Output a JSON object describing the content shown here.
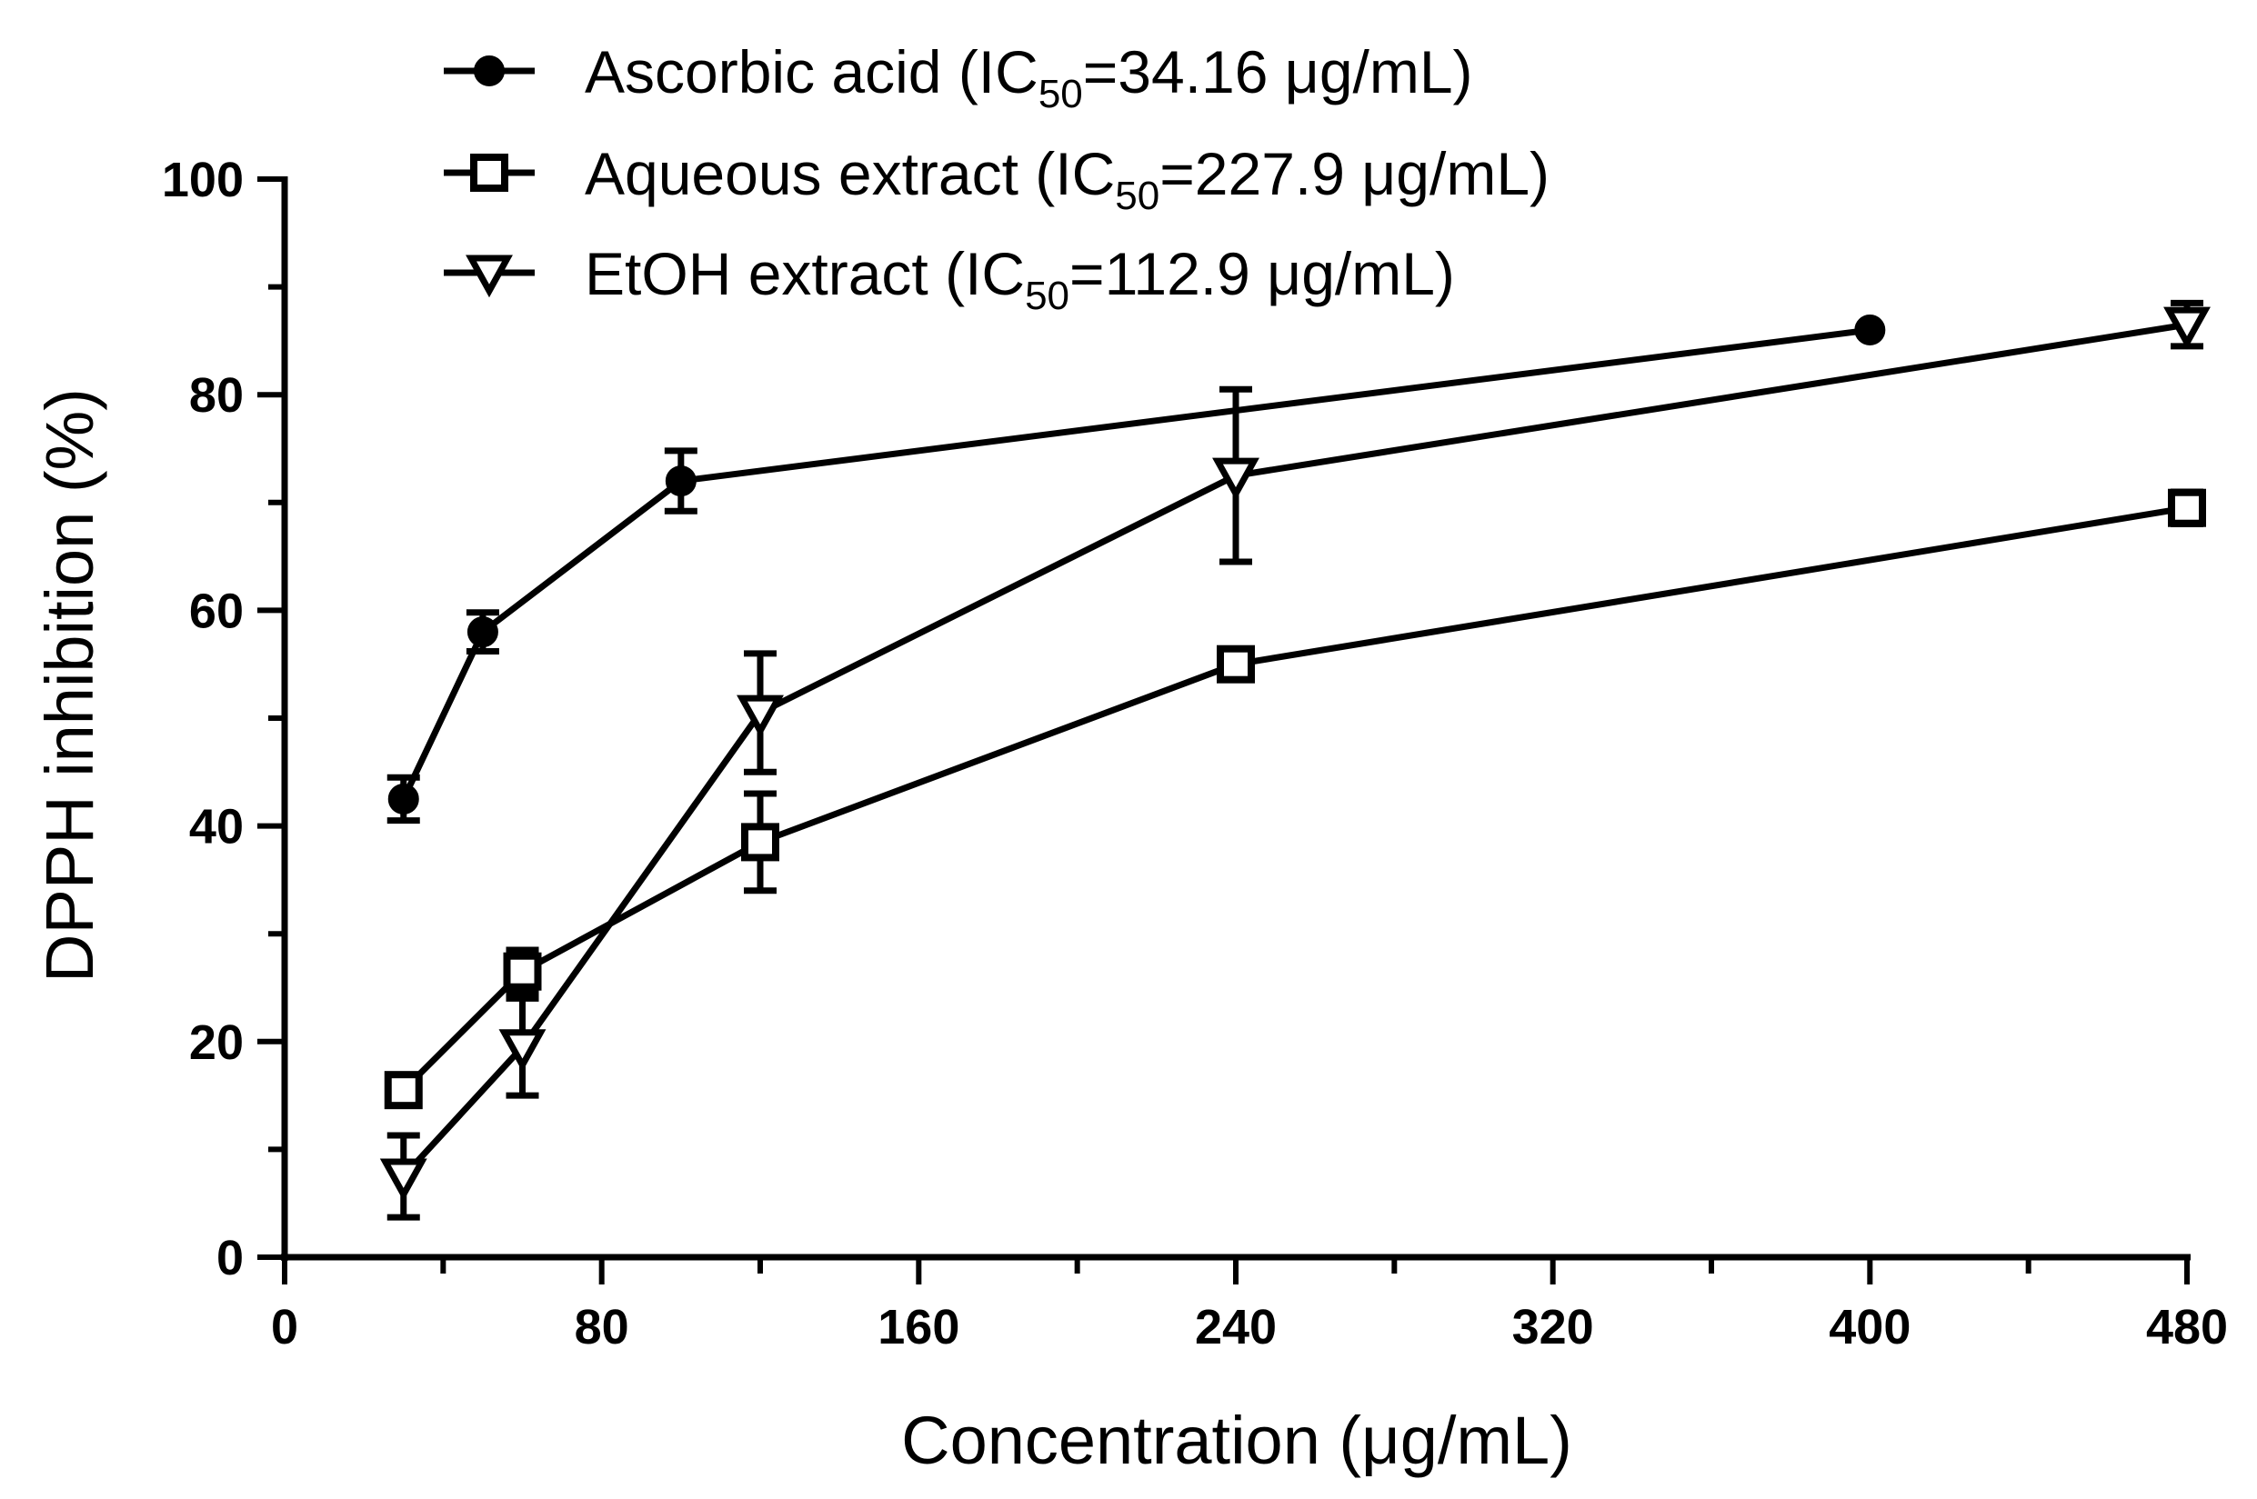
{
  "chart_data": {
    "type": "line",
    "title": "",
    "xlabel": "Concentration (μg/mL)",
    "ylabel": "DPPH inhibition (%)",
    "xlim": [
      0,
      480
    ],
    "ylim": [
      0,
      100
    ],
    "x_ticks": [
      "0",
      "80",
      "160",
      "240",
      "320",
      "400",
      "480"
    ],
    "y_ticks": [
      "0",
      "20",
      "40",
      "60",
      "80",
      "100"
    ],
    "grid": false,
    "legend_position": "top",
    "series": [
      {
        "name": "Ascorbic acid (IC50=34.16 μg/mL)",
        "legend_parts": [
          "Ascorbic acid (IC",
          "50",
          "=34.16 μg/mL)"
        ],
        "marker": "filled-circle",
        "x": [
          30,
          50,
          100,
          400
        ],
        "y": [
          42.5,
          58,
          72,
          86
        ],
        "err": [
          2,
          1.8,
          2.8,
          0
        ]
      },
      {
        "name": "Aqueous extract (IC50=227.9 μg/mL)",
        "legend_parts": [
          "Aqueous extract (IC",
          "50",
          "=227.9 μg/mL)"
        ],
        "marker": "open-square",
        "x": [
          30,
          60,
          120,
          240,
          480
        ],
        "y": [
          15.5,
          26.5,
          38.5,
          55,
          69.5
        ],
        "err": [
          1,
          2,
          4.5,
          1,
          1.5
        ]
      },
      {
        "name": "EtOH extract (IC50=112.9 μg/mL)",
        "legend_parts": [
          "EtOH extract (IC",
          "50",
          "=112.9 μg/mL)"
        ],
        "marker": "open-triangle-down",
        "x": [
          30,
          60,
          120,
          240,
          480
        ],
        "y": [
          7.5,
          19.5,
          50.5,
          72.5,
          86.5
        ],
        "err": [
          3.8,
          4.5,
          5.5,
          8,
          2
        ]
      }
    ],
    "color": "#000000"
  }
}
